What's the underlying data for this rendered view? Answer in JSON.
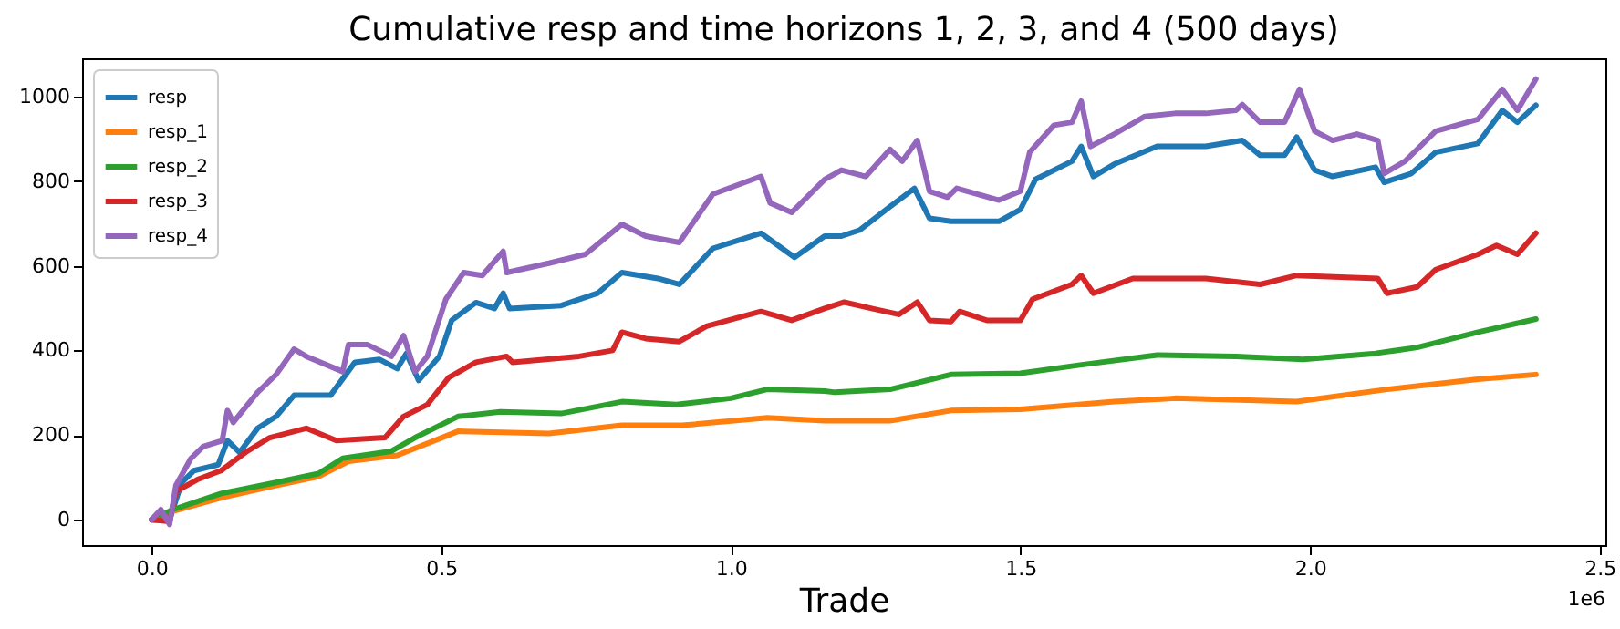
{
  "chart_data": {
    "type": "line",
    "title": "Cumulative resp and time horizons 1, 2, 3, and 4 (500 days)",
    "xlabel": "Trade",
    "annotations": [
      "1e6"
    ],
    "xlim": [
      -0.12,
      2.51
    ],
    "xticks": [
      {
        "value": 0,
        "label": "0.0"
      },
      0.5,
      {
        "value": 1,
        "label": "1.0"
      },
      1.5,
      {
        "value": 2,
        "label": "2.0"
      },
      2.5
    ],
    "ylim": [
      -60,
      1090
    ],
    "yticks": [
      0,
      200,
      400,
      600,
      800,
      1000
    ],
    "grid": false,
    "legend": "top left",
    "marker": "none",
    "line_style": "solid",
    "series": [
      {
        "name": "resp",
        "color": "#1f77b4",
        "x": [
          0,
          0.031,
          0.052,
          0.073,
          0.115,
          0.131,
          0.152,
          0.183,
          0.215,
          0.246,
          0.309,
          0.351,
          0.393,
          0.424,
          0.44,
          0.461,
          0.497,
          0.518,
          0.56,
          0.592,
          0.607,
          0.618,
          0.707,
          0.77,
          0.812,
          0.874,
          0.911,
          0.969,
          1.052,
          1.11,
          1.162,
          1.191,
          1.222,
          1.275,
          1.317,
          1.343,
          1.38,
          1.463,
          1.5,
          1.526,
          1.589,
          1.605,
          1.626,
          1.662,
          1.736,
          1.82,
          1.883,
          1.914,
          1.956,
          1.977,
          2.008,
          2.039,
          2.113,
          2.128,
          2.175,
          2.217,
          2.29,
          2.332,
          2.358,
          2.39
        ],
        "values": [
          0,
          0,
          88,
          116,
          130,
          187,
          159,
          216,
          244,
          294,
          294,
          372,
          379,
          357,
          393,
          329,
          386,
          471,
          513,
          499,
          535,
          499,
          506,
          535,
          584,
          570,
          556,
          641,
          677,
          620,
          670,
          670,
          684,
          740,
          783,
          712,
          705,
          705,
          733,
          804,
          847,
          882,
          811,
          840,
          882,
          882,
          896,
          861,
          861,
          904,
          826,
          811,
          833,
          797,
          818,
          868,
          889,
          967,
          939,
          979
        ]
      },
      {
        "name": "resp_1",
        "color": "#ff7f0e",
        "x": [
          0,
          0.037,
          0.12,
          0.215,
          0.288,
          0.34,
          0.424,
          0.529,
          0.686,
          0.812,
          0.916,
          1.063,
          1.162,
          1.275,
          1.38,
          1.5,
          1.662,
          1.767,
          1.977,
          2.133,
          2.29,
          2.39
        ],
        "values": [
          0,
          20,
          52,
          81,
          102,
          138,
          152,
          209,
          204,
          223,
          223,
          241,
          234,
          234,
          258,
          261,
          279,
          287,
          279,
          308,
          332,
          343
        ]
      },
      {
        "name": "resp_2",
        "color": "#2ca02c",
        "x": [
          0,
          0.037,
          0.12,
          0.215,
          0.288,
          0.33,
          0.414,
          0.455,
          0.529,
          0.602,
          0.707,
          0.812,
          0.906,
          1.0,
          1.063,
          1.162,
          1.18,
          1.275,
          1.38,
          1.5,
          1.6,
          1.736,
          1.872,
          1.988,
          2.113,
          2.185,
          2.29,
          2.39
        ],
        "values": [
          0,
          24,
          62,
          88,
          109,
          145,
          162,
          194,
          244,
          255,
          251,
          279,
          272,
          287,
          308,
          304,
          301,
          308,
          343,
          346,
          365,
          389,
          386,
          379,
          393,
          407,
          443,
          474
        ]
      },
      {
        "name": "resp_3",
        "color": "#d62728",
        "x": [
          0,
          0.031,
          0.042,
          0.079,
          0.12,
          0.162,
          0.204,
          0.267,
          0.319,
          0.403,
          0.435,
          0.476,
          0.513,
          0.56,
          0.613,
          0.623,
          0.738,
          0.796,
          0.812,
          0.853,
          0.911,
          0.958,
          1.052,
          1.105,
          1.162,
          1.196,
          1.243,
          1.29,
          1.322,
          1.343,
          1.38,
          1.395,
          1.442,
          1.5,
          1.521,
          1.589,
          1.605,
          1.626,
          1.694,
          1.82,
          1.914,
          1.977,
          2.117,
          2.133,
          2.185,
          2.217,
          2.29,
          2.322,
          2.358,
          2.39
        ],
        "values": [
          0,
          -4,
          67,
          95,
          116,
          159,
          194,
          216,
          187,
          194,
          244,
          272,
          336,
          372,
          386,
          372,
          386,
          400,
          443,
          428,
          421,
          457,
          492,
          471,
          499,
          514,
          499,
          485,
          514,
          471,
          468,
          492,
          471,
          471,
          521,
          556,
          577,
          535,
          570,
          570,
          556,
          577,
          570,
          535,
          550,
          591,
          627,
          648,
          627,
          677
        ]
      },
      {
        "name": "resp_4",
        "color": "#9467bd",
        "x": [
          0,
          0.016,
          0.031,
          0.042,
          0.068,
          0.089,
          0.122,
          0.131,
          0.141,
          0.183,
          0.215,
          0.246,
          0.267,
          0.33,
          0.34,
          0.372,
          0.414,
          0.435,
          0.455,
          0.476,
          0.508,
          0.539,
          0.571,
          0.607,
          0.613,
          0.686,
          0.749,
          0.812,
          0.853,
          0.911,
          0.969,
          1.052,
          1.068,
          1.105,
          1.162,
          1.191,
          1.233,
          1.275,
          1.296,
          1.322,
          1.343,
          1.374,
          1.39,
          1.463,
          1.5,
          1.516,
          1.558,
          1.589,
          1.605,
          1.621,
          1.662,
          1.715,
          1.767,
          1.82,
          1.872,
          1.883,
          1.914,
          1.956,
          1.982,
          2.008,
          2.039,
          2.081,
          2.117,
          2.128,
          2.164,
          2.217,
          2.29,
          2.332,
          2.358,
          2.39
        ],
        "values": [
          0,
          24,
          -11,
          81,
          145,
          173,
          187,
          258,
          230,
          301,
          343,
          403,
          386,
          350,
          414,
          414,
          386,
          435,
          350,
          386,
          521,
          584,
          577,
          634,
          584,
          606,
          627,
          698,
          670,
          655,
          769,
          811,
          748,
          726,
          804,
          826,
          811,
          875,
          847,
          896,
          776,
          762,
          783,
          755,
          776,
          868,
          932,
          939,
          989,
          882,
          911,
          953,
          960,
          960,
          967,
          981,
          939,
          939,
          1017,
          918,
          896,
          911,
          896,
          818,
          847,
          918,
          946,
          1017,
          967,
          1041
        ]
      }
    ]
  }
}
